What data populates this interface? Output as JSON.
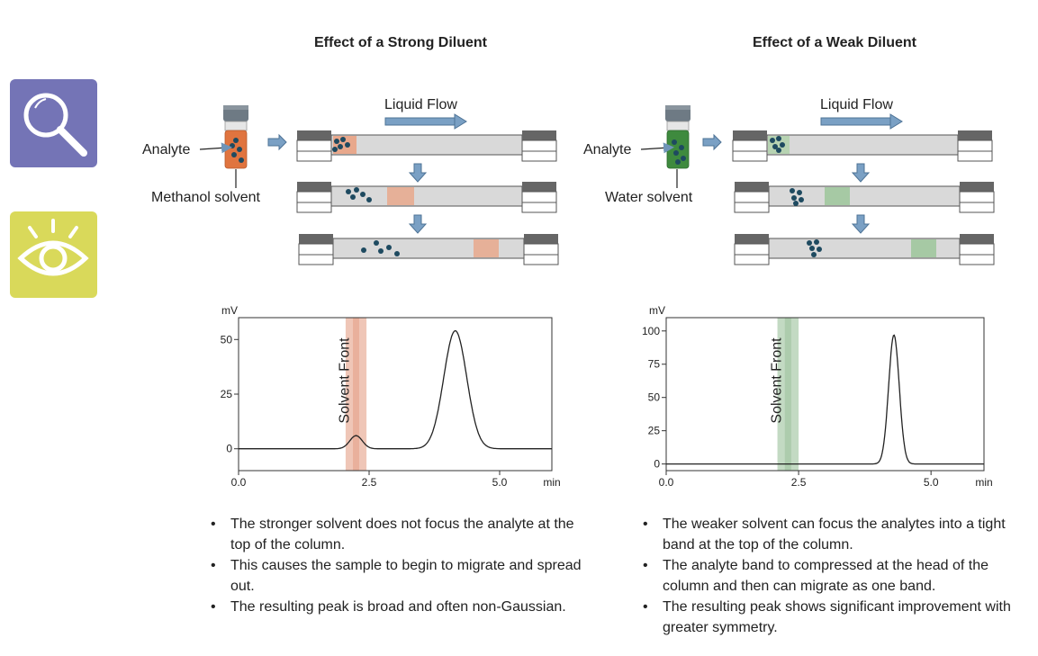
{
  "left": {
    "title": "Effect of a Strong Diluent",
    "flow_label": "Liquid Flow",
    "analyte_label": "Analyte",
    "solvent_label": "Methanol solvent",
    "accent_color": "#d8704a",
    "band_positions": [
      0.0,
      0.3,
      0.8
    ],
    "chart_data": {
      "type": "line",
      "title": "",
      "ylabel": "mV",
      "xlabel": "min",
      "xlim": [
        0.0,
        6.0
      ],
      "ylim": [
        -10,
        60
      ],
      "xticks": [
        "0.0",
        "2.5",
        "5.0"
      ],
      "yticks": [
        "0",
        "25",
        "50"
      ],
      "solvent_front_label": "Solvent Front",
      "solvent_front_range": [
        2.05,
        2.45
      ],
      "peaks": [
        {
          "center": 2.25,
          "height": 6,
          "width": 0.12
        },
        {
          "center": 4.15,
          "height": 54,
          "width": 0.22
        }
      ]
    },
    "bullets": [
      "The stronger solvent does not focus the analyte at the top of the column.",
      "This causes the sample to begin to migrate and spread out.",
      "The resulting peak is broad and often non-Gaussian."
    ]
  },
  "right": {
    "title": "Effect of a Weak Diluent",
    "flow_label": "Liquid Flow",
    "analyte_label": "Analyte",
    "solvent_label": "Water solvent",
    "accent_color": "#6aa36a",
    "band_positions": [
      0.0,
      0.3,
      0.75
    ],
    "chart_data": {
      "type": "line",
      "title": "",
      "ylabel": "mV",
      "xlabel": "min",
      "xlim": [
        0.0,
        6.0
      ],
      "ylim": [
        -5,
        110
      ],
      "xticks": [
        "0.0",
        "2.5",
        "5.0"
      ],
      "yticks": [
        "0",
        "25",
        "50",
        "75",
        "100"
      ],
      "solvent_front_label": "Solvent Front",
      "solvent_front_range": [
        2.1,
        2.5
      ],
      "peaks": [
        {
          "center": 4.3,
          "height": 97,
          "width": 0.1
        }
      ]
    },
    "bullets": [
      "The weaker solvent can focus the analytes into a tight band at the top of the column.",
      "The analyte band to compressed at the head of the column and then can migrate as one band.",
      "The resulting peak shows significant improvement with greater symmetry."
    ]
  },
  "icons": {
    "magnifier": {
      "name": "magnifier-icon",
      "color": "#7474b6"
    },
    "eye": {
      "name": "eye-icon",
      "color": "#d9d95a"
    }
  }
}
